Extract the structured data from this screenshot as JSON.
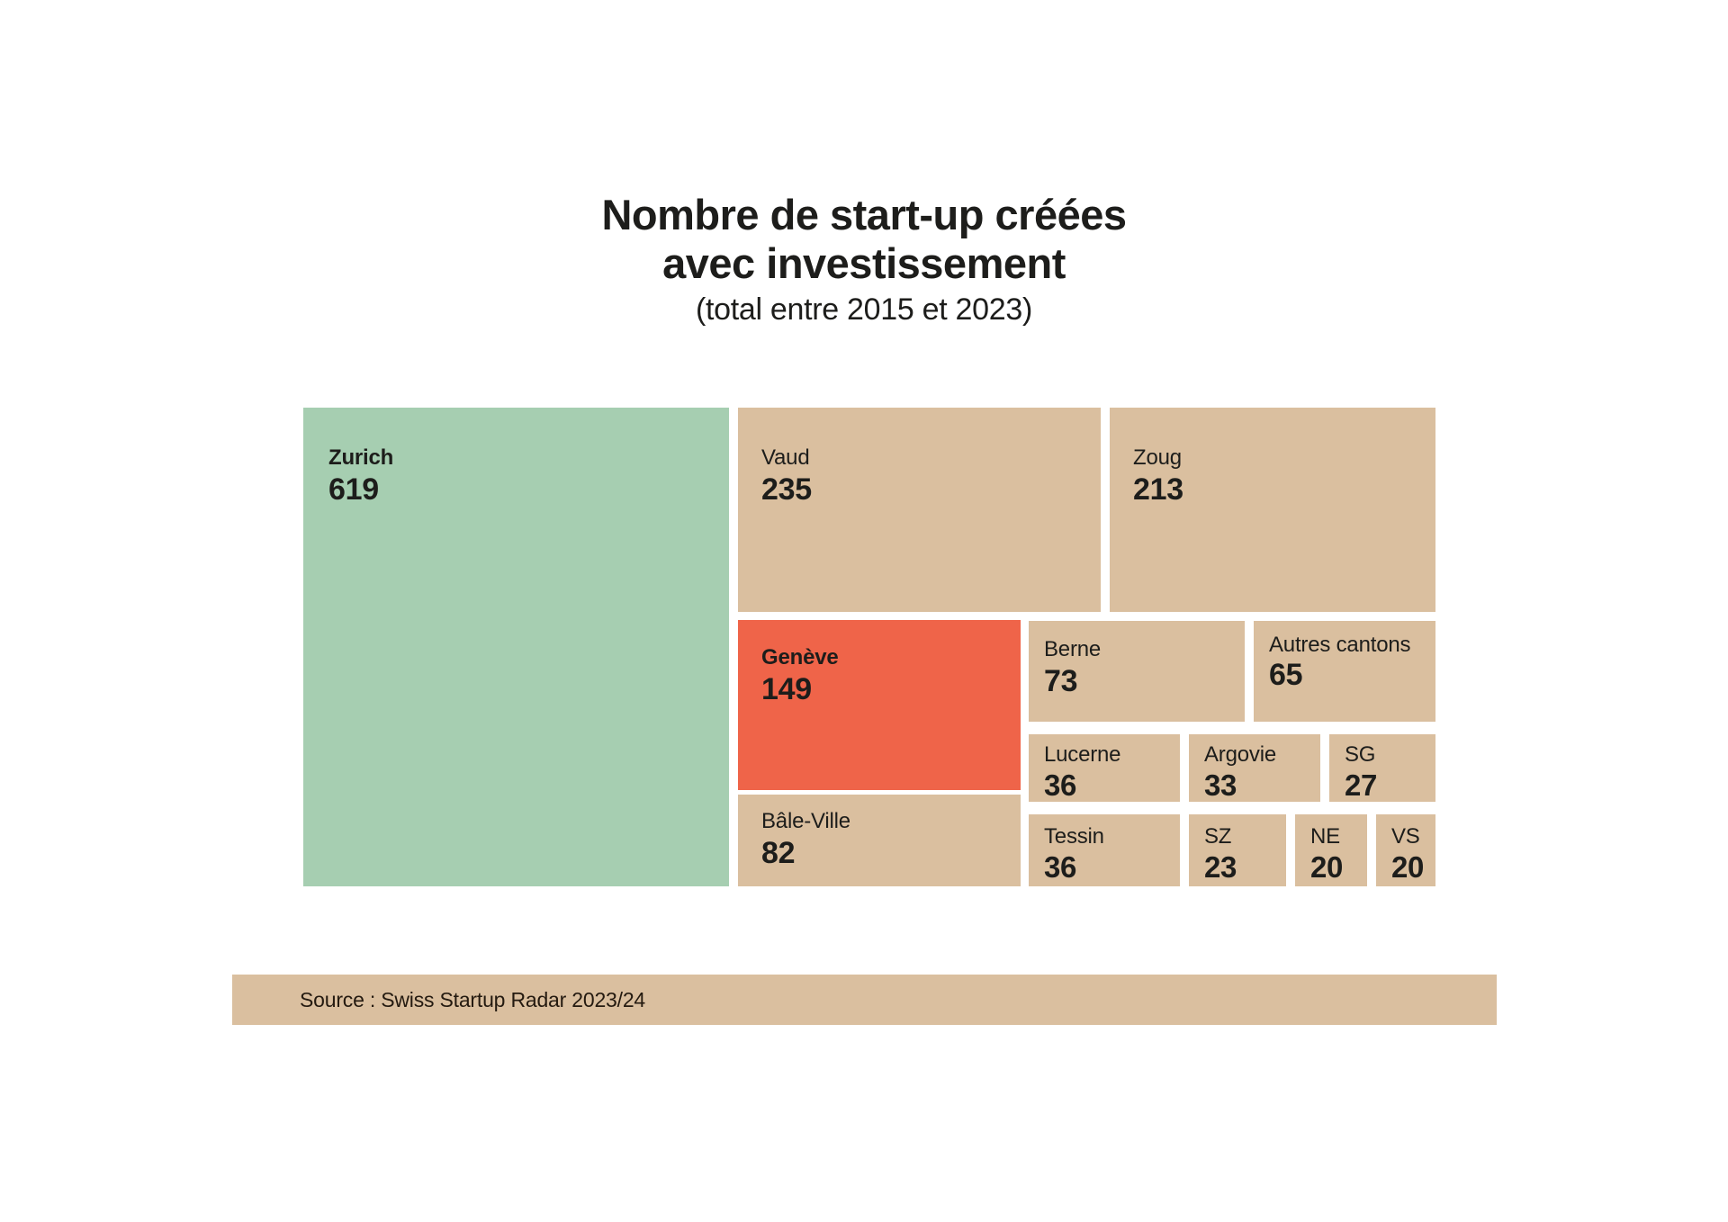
{
  "title": {
    "line1": "Nombre de start-up créées",
    "line2": "avec investissement",
    "subtitle": "(total entre 2015 et 2023)"
  },
  "source": {
    "text": "Source : Swiss Startup Radar 2023/24"
  },
  "colors": {
    "highlight_green": "#a6ceb1",
    "highlight_orange": "#ef6449",
    "default_tan": "#dabf9f",
    "source_bar": "#dabf9f",
    "text": "#1d1d1b",
    "background": "#ffffff"
  },
  "chart_data": {
    "type": "treemap",
    "title": "Nombre de start-up créées avec investissement",
    "subtitle": "(total entre 2015 et 2023)",
    "legend": "none",
    "gap_color": "#ffffff",
    "items": [
      {
        "label": "Zurich",
        "value": 619,
        "color": "#a6ceb1",
        "highlighted": true
      },
      {
        "label": "Vaud",
        "value": 235,
        "color": "#dabf9f",
        "highlighted": false
      },
      {
        "label": "Zoug",
        "value": 213,
        "color": "#dabf9f",
        "highlighted": false
      },
      {
        "label": "Genève",
        "value": 149,
        "color": "#ef6449",
        "highlighted": true
      },
      {
        "label": "Bâle-Ville",
        "value": 82,
        "color": "#dabf9f",
        "highlighted": false
      },
      {
        "label": "Berne",
        "value": 73,
        "color": "#dabf9f",
        "highlighted": false
      },
      {
        "label": "Autres cantons",
        "value": 65,
        "color": "#dabf9f",
        "highlighted": false
      },
      {
        "label": "Lucerne",
        "value": 36,
        "color": "#dabf9f",
        "highlighted": false
      },
      {
        "label": "Tessin",
        "value": 36,
        "color": "#dabf9f",
        "highlighted": false
      },
      {
        "label": "Argovie",
        "value": 33,
        "color": "#dabf9f",
        "highlighted": false
      },
      {
        "label": "SG",
        "value": 27,
        "color": "#dabf9f",
        "highlighted": false
      },
      {
        "label": "SZ",
        "value": 23,
        "color": "#dabf9f",
        "highlighted": false
      },
      {
        "label": "NE",
        "value": 20,
        "color": "#dabf9f",
        "highlighted": false
      },
      {
        "label": "VS",
        "value": 20,
        "color": "#dabf9f",
        "highlighted": false
      }
    ]
  }
}
